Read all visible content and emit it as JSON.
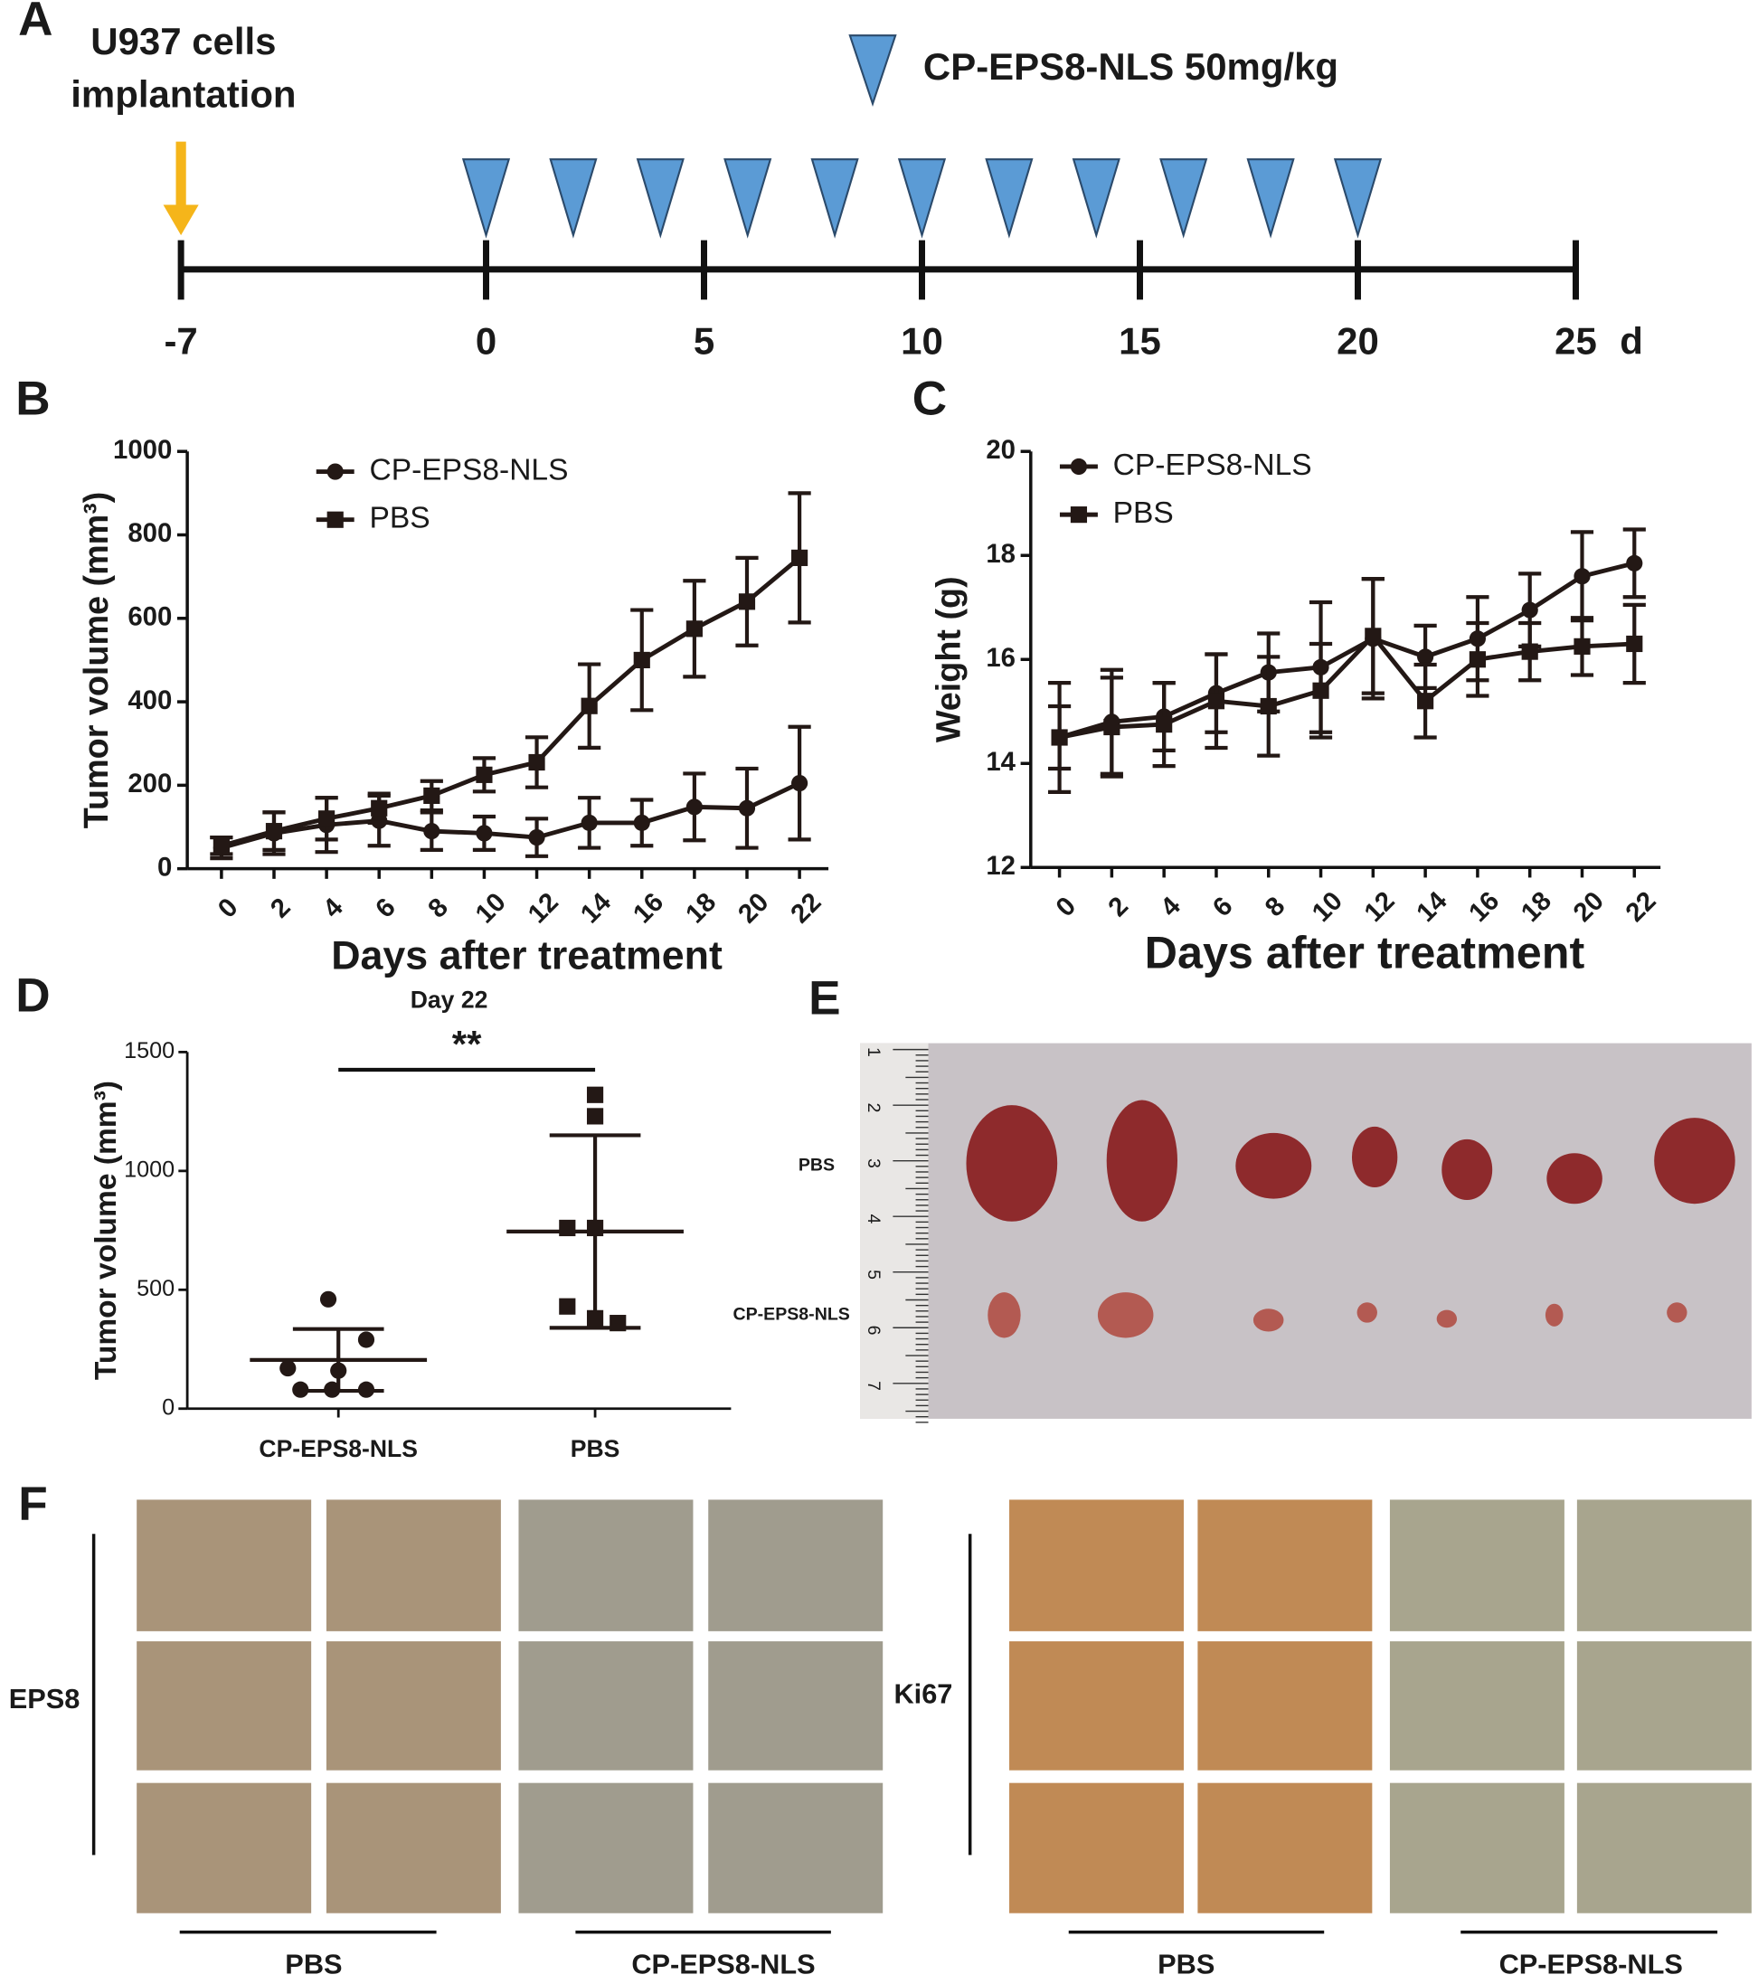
{
  "panel_labels": [
    "A",
    "B",
    "C",
    "D",
    "E",
    "F"
  ],
  "chart_data": [
    {
      "type": "timeline",
      "implant_label": [
        "U937 cells",
        "implantation"
      ],
      "implant_day": -7,
      "implant_color": "#f5b51a",
      "dose_label": "CP-EPS8-NLS 50mg/kg",
      "dose_color": "#5b9bd5",
      "dose_days": [
        0,
        2,
        4,
        6,
        8,
        10,
        12,
        14,
        16,
        18,
        20
      ],
      "xlim": [
        -7,
        25
      ],
      "xticks": [
        -7,
        0,
        5,
        10,
        15,
        20,
        25
      ],
      "unit": "d"
    },
    {
      "type": "line",
      "ylabel": "Tumor volume (mm³)",
      "xlabel": "Days after treatment",
      "legend": "upper left",
      "color": "#231815",
      "x": [
        0,
        2,
        4,
        6,
        8,
        10,
        12,
        14,
        16,
        18,
        20,
        22
      ],
      "xlim": [
        -1.3,
        23.1
      ],
      "xticks": [
        0,
        2,
        4,
        6,
        8,
        10,
        12,
        14,
        16,
        18,
        20,
        22
      ],
      "ylim": [
        0,
        1000
      ],
      "yticks": [
        0,
        200,
        400,
        600,
        800,
        1000
      ],
      "series": [
        {
          "name": "CP-EPS8-NLS",
          "marker": "circle",
          "values": [
            50,
            85,
            105,
            115,
            90,
            85,
            75,
            110,
            110,
            148,
            145,
            205
          ],
          "errors": [
            25,
            50,
            65,
            60,
            45,
            40,
            45,
            60,
            55,
            80,
            95,
            135
          ]
        },
        {
          "name": "PBS",
          "marker": "square",
          "values": [
            55,
            90,
            120,
            145,
            175,
            225,
            255,
            390,
            500,
            575,
            640,
            745
          ],
          "errors": [
            20,
            45,
            50,
            35,
            35,
            40,
            60,
            100,
            120,
            115,
            105,
            155
          ]
        }
      ]
    },
    {
      "type": "line",
      "ylabel": "Weight (g)",
      "xlabel": "Days after treatment",
      "legend": "upper left",
      "color": "#231815",
      "x": [
        0,
        2,
        4,
        6,
        8,
        10,
        12,
        14,
        16,
        18,
        20,
        22
      ],
      "xlim": [
        -1.1,
        23.0
      ],
      "xticks": [
        0,
        2,
        4,
        6,
        8,
        10,
        12,
        14,
        16,
        18,
        20,
        22
      ],
      "ylim": [
        12,
        20
      ],
      "yticks": [
        12,
        14,
        16,
        18,
        20
      ],
      "series": [
        {
          "name": "CP-EPS8-NLS",
          "marker": "circle",
          "values": [
            14.5,
            14.8,
            14.9,
            15.35,
            15.75,
            15.85,
            16.4,
            16.05,
            16.4,
            16.95,
            17.6,
            17.85
          ],
          "errors": [
            0.6,
            1.0,
            0.65,
            0.75,
            0.75,
            1.25,
            1.15,
            0.6,
            0.8,
            0.7,
            0.85,
            0.65
          ]
        },
        {
          "name": "PBS",
          "marker": "square",
          "values": [
            14.5,
            14.7,
            14.75,
            15.2,
            15.1,
            15.4,
            16.45,
            15.2,
            16.0,
            16.15,
            16.25,
            16.3
          ],
          "errors": [
            1.05,
            0.95,
            0.8,
            0.9,
            0.95,
            0.9,
            1.1,
            0.7,
            0.7,
            0.55,
            0.55,
            0.75
          ]
        }
      ]
    },
    {
      "type": "dot",
      "title": "Day 22",
      "ylabel": "Tumor volume (mm³)",
      "annotation": "**",
      "color": "#231815",
      "categories": [
        "CP-EPS8-NLS",
        "PBS"
      ],
      "markers": [
        "circle",
        "square"
      ],
      "values": [
        [
          460,
          290,
          170,
          160,
          80,
          80,
          80
        ],
        [
          1320,
          1230,
          760,
          760,
          430,
          380,
          360
        ]
      ],
      "means": [
        205,
        745
      ],
      "sds": [
        130,
        405
      ],
      "ylim": [
        0,
        1500
      ],
      "yticks": [
        0,
        500,
        1000,
        1500
      ]
    }
  ],
  "photo_e": {
    "row_labels": [
      "PBS",
      "CP-EPS8-NLS"
    ],
    "ruler_labels": [
      "1",
      "2",
      "3",
      "4",
      "5",
      "6",
      "7"
    ]
  },
  "ihc_f": {
    "groups": [
      {
        "label": "EPS8",
        "columns": [
          "PBS",
          "CP-EPS8-NLS"
        ]
      },
      {
        "label": "Ki67",
        "columns": [
          "PBS",
          "CP-EPS8-NLS"
        ]
      }
    ]
  }
}
